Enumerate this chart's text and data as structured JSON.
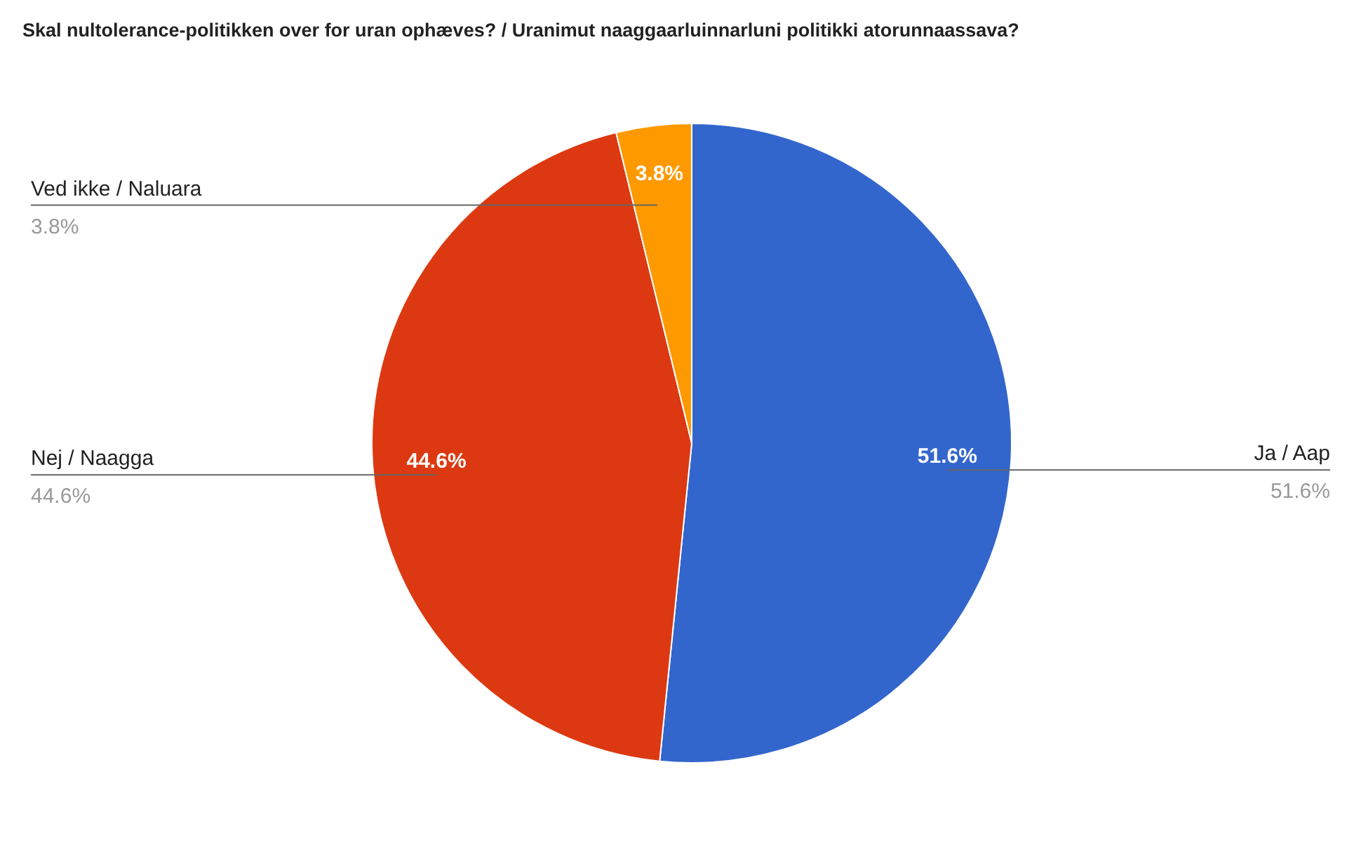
{
  "chart_data": {
    "type": "pie",
    "title": "Skal nultolerance-politikken over for uran ophæves? / Uranimut naaggaarluinnarluni politikki atorunnaassava?",
    "categories": [
      "Ja / Aap",
      "Nej / Naagga",
      "Ved ikke / Naluara"
    ],
    "values": [
      51.6,
      44.6,
      3.8
    ],
    "value_labels": [
      "51.6%",
      "44.6%",
      "3.8%"
    ],
    "colors": [
      "#3366cc",
      "#dc3912",
      "#ff9900"
    ]
  }
}
